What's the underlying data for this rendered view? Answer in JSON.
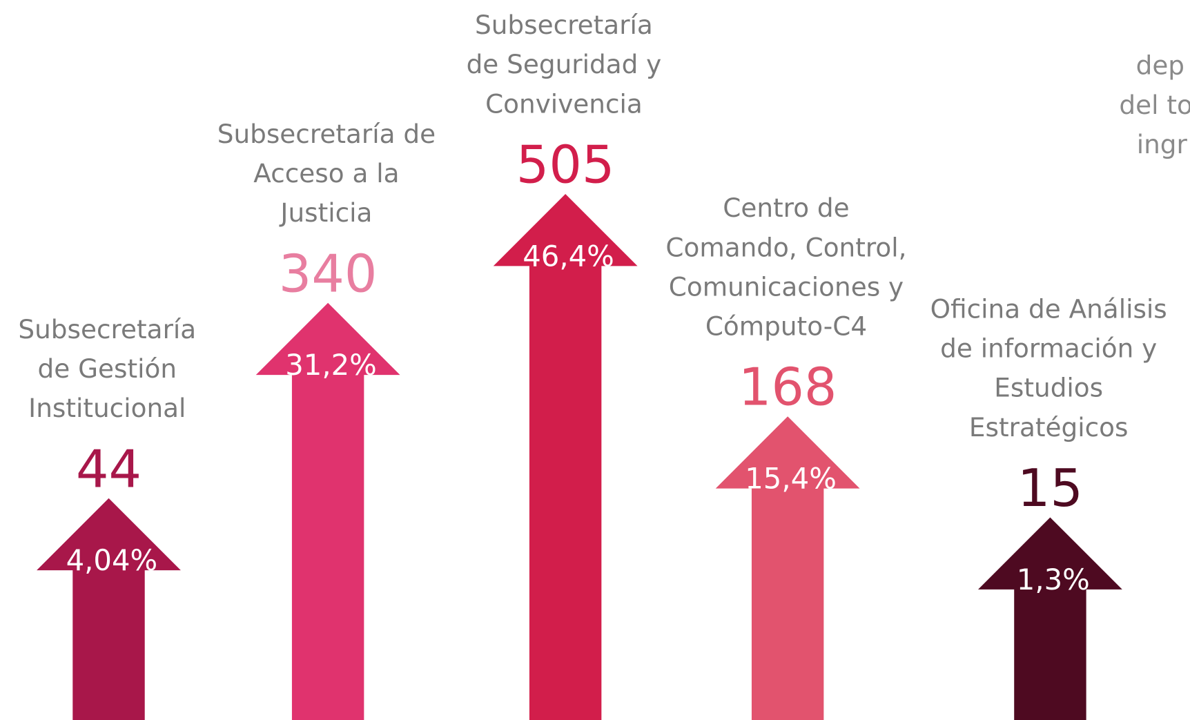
{
  "chart_data": {
    "type": "arrow-bar",
    "categories": [
      [
        "Subsecretaría",
        "de Gestión",
        "Institucional"
      ],
      [
        "Subsecretaría de",
        "Acceso a la",
        "Justicia"
      ],
      [
        "Subsecretaría",
        "de Seguridad y",
        "Convivencia"
      ],
      [
        "Centro de",
        "Comando, Control,",
        "Comunicaciones y",
        "Cómputo-C4"
      ],
      [
        "Oficina de Análisis",
        "de información y",
        "Estudios",
        "Estratégicos"
      ]
    ],
    "values": [
      44,
      340,
      505,
      168,
      15
    ],
    "percent_labels": [
      "4,04%",
      "31,2%",
      "46,4%",
      "15,4%",
      "1,3%"
    ],
    "colors": [
      "#a8174a",
      "#e0336e",
      "#d21e4b",
      "#e2536e",
      "#4e0a21"
    ],
    "value_label_colors": [
      "#a8174a",
      "#e87ea0",
      "#d21e4b",
      "#e2536e",
      "#4e0a21"
    ],
    "annotation": [
      "dep",
      "del to",
      "ingr"
    ]
  }
}
